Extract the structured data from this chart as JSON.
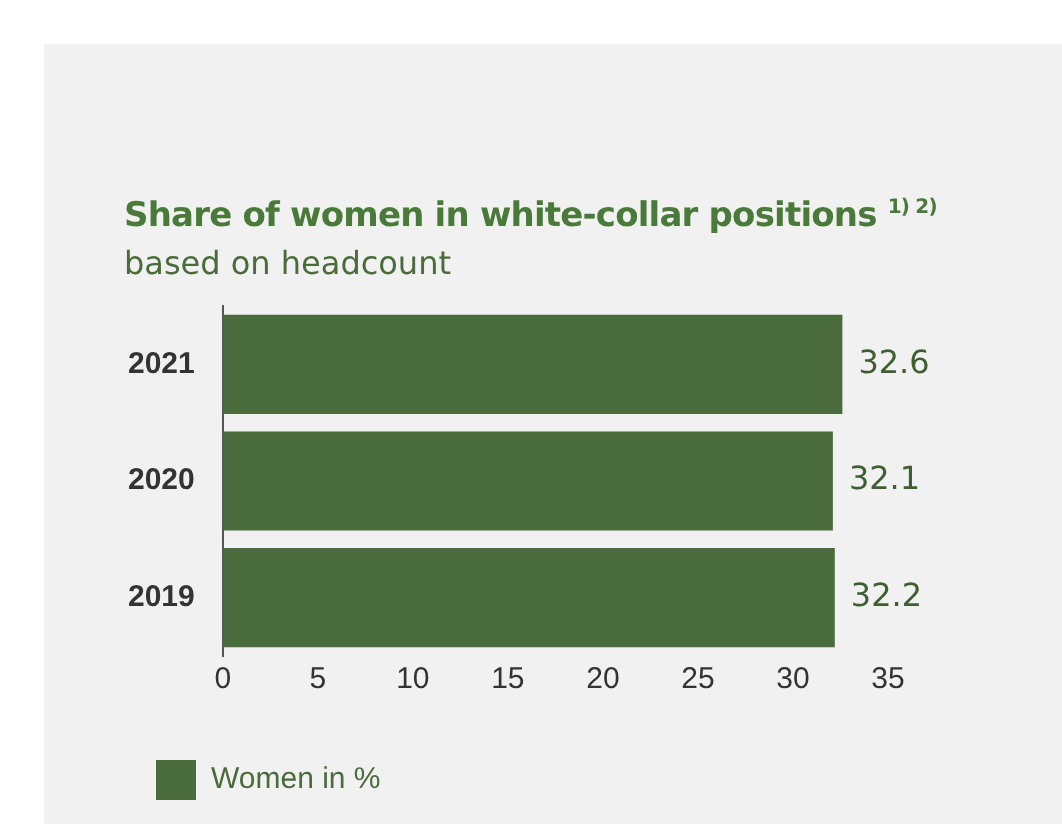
{
  "chart_data": {
    "type": "bar",
    "orientation": "horizontal",
    "title": "Share of women in white-collar positions $^{1) 2)}$",
    "subtitle": "based on headcount",
    "categories": [
      "2021",
      "2020",
      "2019"
    ],
    "series": [
      {
        "name": "Women in %",
        "color": "#4a6b3b",
        "values": [
          32.6,
          32.1,
          32.2
        ]
      }
    ],
    "xlim": [
      0,
      35
    ],
    "xticks": [
      0,
      5,
      10,
      15,
      20,
      25,
      30,
      35
    ],
    "grid": false,
    "legend": "bottom left",
    "data_labels": true
  }
}
